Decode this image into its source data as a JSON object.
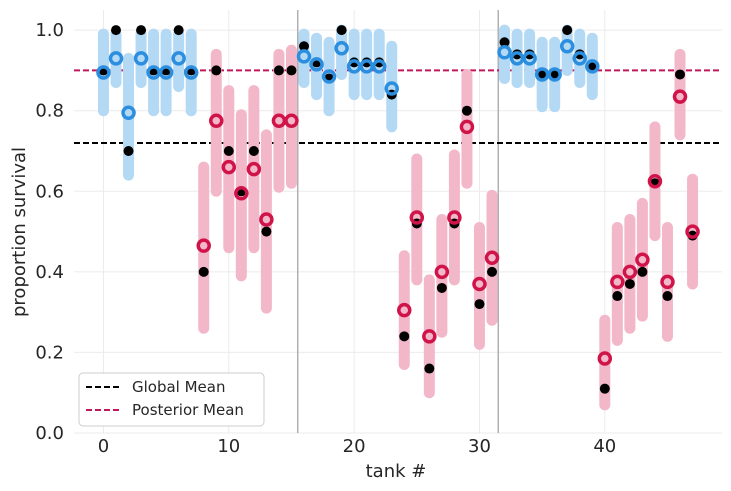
{
  "chart_data": {
    "type": "scatter",
    "title": "",
    "xlabel": "tank #",
    "ylabel": "proportion survival",
    "xlim": [
      -2.35,
      49.35
    ],
    "ylim": [
      0.0,
      1.05
    ],
    "xticks": [
      0,
      10,
      20,
      30,
      40
    ],
    "yticks": [
      0.0,
      0.2,
      0.4,
      0.6,
      0.8,
      1.0
    ],
    "grid": true,
    "legend_placement": "lower-left",
    "vertical_lines": [
      15.5,
      31.5
    ],
    "reference_lines": [
      {
        "name": "Global Mean",
        "y": 0.72,
        "style": "dashed",
        "color": "#000000"
      },
      {
        "name": "Posterior Mean",
        "y": 0.9,
        "style": "dashed",
        "color": "#c2185b"
      }
    ],
    "colors": {
      "high": "#2b8ede",
      "high_interval": "#b3d9f5",
      "low": "#d0144a",
      "low_interval": "#f2b8c9",
      "observed": "#000000"
    },
    "series": [
      {
        "name": "observed",
        "x": [
          0,
          1,
          2,
          3,
          4,
          5,
          6,
          7,
          8,
          9,
          10,
          11,
          12,
          13,
          14,
          15,
          16,
          17,
          18,
          19,
          20,
          21,
          22,
          23,
          24,
          25,
          26,
          27,
          28,
          29,
          30,
          31,
          32,
          33,
          34,
          35,
          36,
          37,
          38,
          39,
          40,
          41,
          42,
          43,
          44,
          45,
          46,
          47
        ],
        "y": [
          0.9,
          1.0,
          0.7,
          1.0,
          0.9,
          0.9,
          1.0,
          0.9,
          0.4,
          0.9,
          0.7,
          0.6,
          0.7,
          0.5,
          0.9,
          0.9,
          0.96,
          0.92,
          0.88,
          1.0,
          0.92,
          0.92,
          0.92,
          0.84,
          0.24,
          0.52,
          0.16,
          0.36,
          0.52,
          0.8,
          0.32,
          0.4,
          0.97,
          0.94,
          0.94,
          0.89,
          0.89,
          1.0,
          0.94,
          0.91,
          0.11,
          0.34,
          0.37,
          0.4,
          0.62,
          0.34,
          0.89,
          0.49
        ]
      },
      {
        "name": "posterior",
        "x": [
          0,
          1,
          2,
          3,
          4,
          5,
          6,
          7,
          8,
          9,
          10,
          11,
          12,
          13,
          14,
          15,
          16,
          17,
          18,
          19,
          20,
          21,
          22,
          23,
          24,
          25,
          26,
          27,
          28,
          29,
          30,
          31,
          32,
          33,
          34,
          35,
          36,
          37,
          38,
          39,
          40,
          41,
          42,
          43,
          44,
          45,
          46,
          47
        ],
        "y": [
          0.895,
          0.93,
          0.795,
          0.93,
          0.895,
          0.895,
          0.93,
          0.895,
          0.465,
          0.775,
          0.66,
          0.595,
          0.655,
          0.53,
          0.775,
          0.775,
          0.935,
          0.915,
          0.885,
          0.955,
          0.91,
          0.91,
          0.91,
          0.855,
          0.305,
          0.535,
          0.24,
          0.4,
          0.535,
          0.76,
          0.37,
          0.435,
          0.945,
          0.93,
          0.93,
          0.89,
          0.89,
          0.96,
          0.93,
          0.91,
          0.185,
          0.375,
          0.4,
          0.43,
          0.625,
          0.375,
          0.835,
          0.5
        ],
        "lower": [
          0.8,
          0.87,
          0.64,
          0.87,
          0.8,
          0.8,
          0.86,
          0.8,
          0.26,
          0.6,
          0.46,
          0.39,
          0.46,
          0.31,
          0.61,
          0.62,
          0.87,
          0.84,
          0.8,
          0.89,
          0.84,
          0.84,
          0.84,
          0.76,
          0.17,
          0.38,
          0.1,
          0.25,
          0.38,
          0.62,
          0.22,
          0.28,
          0.88,
          0.87,
          0.87,
          0.81,
          0.81,
          0.9,
          0.87,
          0.84,
          0.07,
          0.23,
          0.26,
          0.29,
          0.49,
          0.24,
          0.74,
          0.37
        ],
        "upper": [
          0.99,
          0.99,
          0.93,
          0.99,
          0.99,
          0.99,
          0.99,
          0.99,
          0.66,
          0.94,
          0.85,
          0.79,
          0.85,
          0.74,
          0.94,
          0.95,
          0.99,
          0.98,
          0.97,
          1.0,
          0.99,
          0.99,
          0.99,
          0.96,
          0.44,
          0.68,
          0.38,
          0.53,
          0.69,
          0.89,
          0.51,
          0.59,
          1.0,
          0.99,
          0.99,
          0.97,
          0.97,
          1.0,
          0.99,
          0.98,
          0.28,
          0.51,
          0.53,
          0.57,
          0.76,
          0.51,
          0.94,
          0.63
        ],
        "group": [
          "high",
          "high",
          "high",
          "high",
          "high",
          "high",
          "high",
          "high",
          "low",
          "low",
          "low",
          "low",
          "low",
          "low",
          "low",
          "low",
          "high",
          "high",
          "high",
          "high",
          "high",
          "high",
          "high",
          "high",
          "low",
          "low",
          "low",
          "low",
          "low",
          "low",
          "low",
          "low",
          "high",
          "high",
          "high",
          "high",
          "high",
          "high",
          "high",
          "high",
          "low",
          "low",
          "low",
          "low",
          "low",
          "low",
          "low",
          "low"
        ]
      }
    ]
  }
}
